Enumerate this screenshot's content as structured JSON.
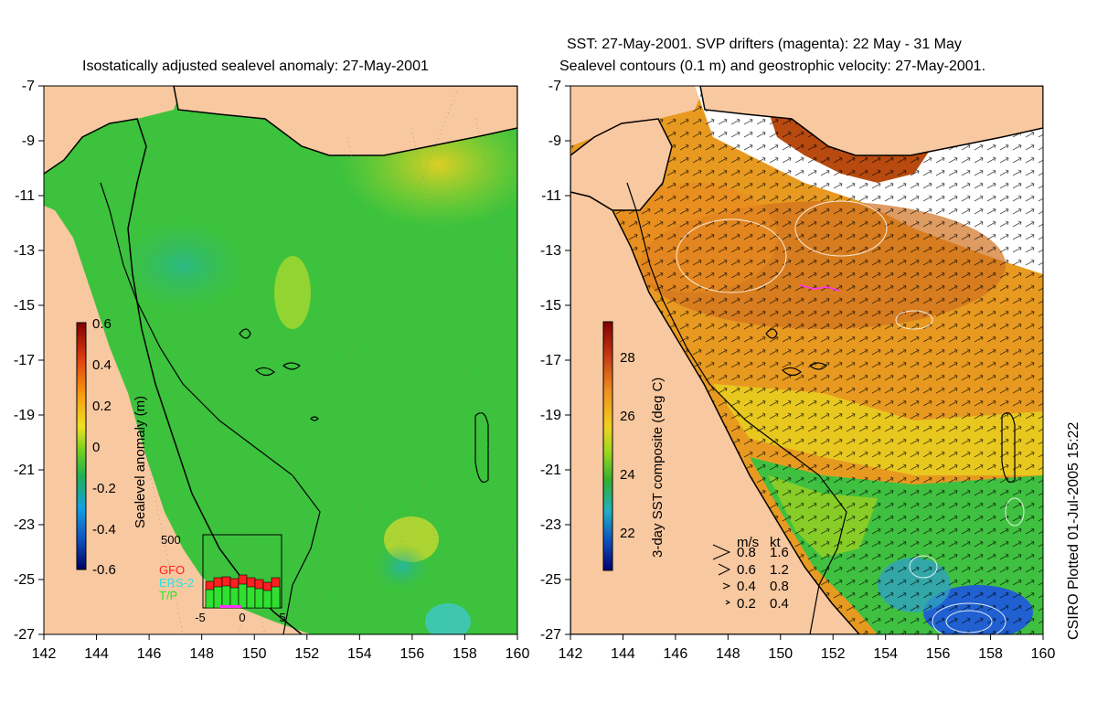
{
  "left_map": {
    "title": "Isostatically adjusted sealevel anomaly: 27-May-2001",
    "colorbar": {
      "label": "Sealevel anomaly (m)",
      "ticks": [
        "0.6",
        "0.4",
        "0.2",
        "0",
        "-0.2",
        "-0.4",
        "-0.6"
      ],
      "min": -0.6,
      "max": 0.6
    },
    "histogram": {
      "ymax_label": "500",
      "legend": [
        {
          "name": "GFO",
          "color": "#ff2020"
        },
        {
          "name": "ERS-2",
          "color": "#30e0e0"
        },
        {
          "name": "T/P",
          "color": "#30e030"
        }
      ],
      "x_ticks": [
        "-5",
        "0",
        "5"
      ]
    }
  },
  "right_map": {
    "title_line1": "SST: 27-May-2001. SVP drifters (magenta): 22 May - 31 May",
    "title_line2": "Sealevel contours (0.1 m) and geostrophic velocity: 27-May-2001.",
    "colorbar": {
      "label": "3-day SST composite (deg C)",
      "ticks": [
        "28",
        "26",
        "24",
        "22"
      ],
      "min": 21,
      "max": 29.5
    },
    "velocity_legend": {
      "header_ms": "m/s",
      "header_kt": "kt",
      "rows": [
        {
          "ms": "0.8",
          "kt": "1.6"
        },
        {
          "ms": "0.6",
          "kt": "1.2"
        },
        {
          "ms": "0.4",
          "kt": "0.8"
        },
        {
          "ms": "0.2",
          "kt": "0.4"
        }
      ]
    }
  },
  "axes": {
    "lat_ticks": [
      "-7",
      "-9",
      "-11",
      "-13",
      "-15",
      "-17",
      "-19",
      "-21",
      "-23",
      "-25",
      "-27"
    ],
    "lon_ticks": [
      "142",
      "144",
      "146",
      "148",
      "150",
      "152",
      "154",
      "156",
      "158",
      "160"
    ]
  },
  "credit": "CSIRO Plotted 01-Jul-2005 15:22",
  "colors": {
    "land": "#f8c8a0",
    "sla_ocean": "#3cc23c",
    "sst_warm": "#e89a20",
    "sst_hot": "#b84a10"
  }
}
